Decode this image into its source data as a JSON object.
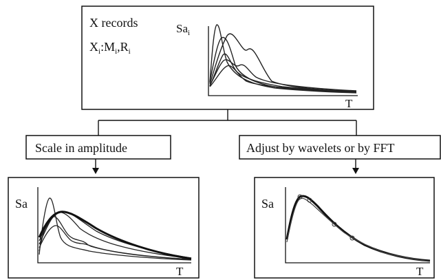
{
  "top_box": {
    "line1": "X records",
    "line2_parts": [
      "X",
      "i",
      ":M",
      "i",
      ",R",
      "i"
    ],
    "axis_y": "Sa",
    "axis_y_sub": "i",
    "axis_x": "T"
  },
  "left_branch": {
    "label": "Scale in amplitude",
    "axis_y": "Sa",
    "axis_x": "T"
  },
  "right_branch": {
    "label": "Adjust by wavelets or by FFT",
    "axis_y": "Sa",
    "axis_x": "T"
  }
}
